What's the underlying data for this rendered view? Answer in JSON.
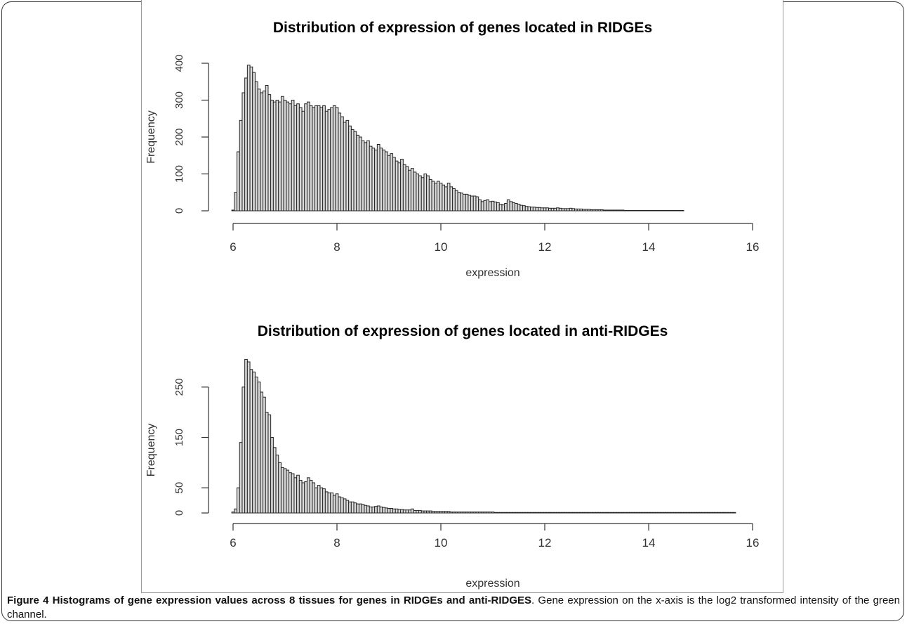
{
  "caption": {
    "label": "Figure 4",
    "title": "Histograms of gene expression values across 8 tissues for genes in RIDGEs and anti-RIDGES",
    "text": ". Gene expression on the x-axis is the log2 transformed intensity of the green channel."
  },
  "colors": {
    "bar_fill": "#d9d9d9",
    "bar_stroke": "#222222",
    "text": "#333333"
  },
  "chart_data": [
    {
      "type": "bar",
      "title": "Distribution of expression of genes located in RIDGEs",
      "xlabel": "expression",
      "ylabel": "Frequency",
      "xlim": [
        6,
        16
      ],
      "ylim": [
        0,
        400
      ],
      "bin_start": 5.975,
      "bin_width": 0.05,
      "x_ticks": [
        6,
        8,
        10,
        12,
        14,
        16
      ],
      "y_ticks": [
        0,
        100,
        200,
        300,
        400
      ],
      "values": [
        2,
        50,
        160,
        245,
        320,
        360,
        395,
        390,
        375,
        350,
        330,
        320,
        325,
        340,
        315,
        300,
        295,
        300,
        295,
        310,
        300,
        295,
        290,
        300,
        285,
        290,
        280,
        270,
        290,
        295,
        285,
        280,
        285,
        285,
        280,
        285,
        270,
        275,
        280,
        285,
        280,
        265,
        255,
        240,
        245,
        230,
        220,
        215,
        205,
        200,
        190,
        185,
        190,
        175,
        170,
        165,
        180,
        170,
        165,
        160,
        150,
        155,
        145,
        135,
        130,
        140,
        125,
        120,
        110,
        115,
        105,
        100,
        95,
        90,
        100,
        95,
        85,
        80,
        75,
        80,
        75,
        70,
        65,
        75,
        65,
        60,
        55,
        50,
        48,
        45,
        45,
        42,
        40,
        40,
        38,
        30,
        25,
        28,
        30,
        25,
        26,
        24,
        22,
        18,
        16,
        20,
        30,
        25,
        22,
        20,
        18,
        15,
        14,
        12,
        11,
        10,
        10,
        9,
        9,
        8,
        8,
        8,
        7,
        7,
        7,
        8,
        7,
        6,
        6,
        6,
        7,
        6,
        5,
        5,
        5,
        4,
        4,
        4,
        3,
        3,
        3,
        3,
        3,
        2,
        2,
        2,
        2,
        2,
        2,
        2,
        2,
        1,
        1,
        1,
        1,
        1,
        1,
        1,
        1,
        1,
        1,
        1,
        1,
        1,
        1,
        1,
        1,
        1,
        1,
        1,
        1,
        1,
        1,
        1
      ]
    },
    {
      "type": "bar",
      "title": "Distribution of expression of genes located in anti-RIDGEs",
      "xlabel": "expression",
      "ylabel": "Frequency",
      "xlim": [
        6,
        16
      ],
      "ylim": [
        0,
        300
      ],
      "bin_start": 5.975,
      "bin_width": 0.05,
      "x_ticks": [
        6,
        8,
        10,
        12,
        14,
        16
      ],
      "y_ticks": [
        0,
        50,
        150,
        250
      ],
      "values": [
        2,
        8,
        50,
        140,
        250,
        305,
        300,
        285,
        280,
        270,
        260,
        240,
        230,
        200,
        195,
        150,
        130,
        115,
        100,
        90,
        88,
        85,
        80,
        78,
        70,
        75,
        65,
        60,
        62,
        70,
        65,
        60,
        50,
        55,
        50,
        48,
        42,
        40,
        40,
        35,
        38,
        32,
        30,
        28,
        25,
        22,
        22,
        20,
        18,
        18,
        17,
        15,
        14,
        12,
        12,
        13,
        14,
        12,
        11,
        10,
        9,
        9,
        8,
        8,
        7,
        7,
        6,
        6,
        6,
        8,
        5,
        5,
        5,
        4,
        4,
        4,
        4,
        3,
        3,
        3,
        3,
        3,
        3,
        3,
        2,
        2,
        2,
        2,
        2,
        2,
        2,
        2,
        2,
        2,
        2,
        2,
        2,
        2,
        2,
        2,
        2,
        1,
        1,
        1,
        1,
        1,
        1,
        1,
        1,
        1,
        1,
        1,
        1,
        1,
        1,
        1,
        1,
        1,
        1,
        1,
        1,
        1,
        1,
        1,
        1,
        1,
        1,
        1,
        1,
        1,
        1,
        1,
        1,
        1,
        1,
        1,
        1,
        1,
        1,
        1,
        1,
        1,
        1,
        1,
        1,
        1,
        1,
        1,
        1,
        1,
        1,
        1,
        1,
        1,
        1,
        1,
        1,
        1,
        1,
        1,
        1,
        1,
        1,
        1,
        1,
        1,
        1,
        1,
        1,
        1,
        1,
        1,
        1,
        1,
        1,
        1,
        1,
        1,
        1,
        1,
        1,
        1,
        1,
        1,
        1,
        1,
        1,
        1,
        1,
        1,
        1,
        1,
        1,
        1,
        1,
        1
      ]
    }
  ]
}
